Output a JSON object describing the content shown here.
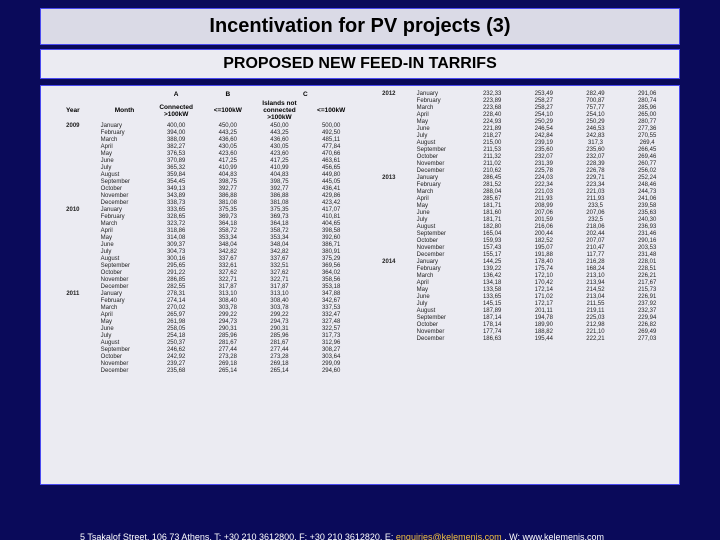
{
  "title": "Incentivation for PV projects (3)",
  "subtitle": "PROPOSED NEW FEED-IN TARRIFS",
  "left_headers": {
    "col1": "Year",
    "col2": "Month",
    "colA": "A",
    "colB": "B",
    "colC": "C",
    "subA": "Connected >100kW",
    "subB": "<=100kW",
    "subC1": "Islands not connected >100kW",
    "subC2": "<=100kW"
  },
  "footer": {
    "prefix": "5 Tsakalof Street, 106 73 Athens, T: +30 210 3612800, F: +30 210 3612820, E: ",
    "email": "enquiries@kelemenis.com",
    "suffix": ", W: www.kelemenis.com"
  },
  "months": [
    "January",
    "February",
    "March",
    "April",
    "May",
    "June",
    "July",
    "August",
    "September",
    "October",
    "November",
    "December"
  ],
  "left": {
    "2009": [
      [
        "400,00",
        "450,00",
        "450,00",
        "500,00"
      ],
      [
        "394,00",
        "443,25",
        "443,25",
        "492,50"
      ],
      [
        "388,09",
        "436,60",
        "436,60",
        "485,11"
      ],
      [
        "382,27",
        "430,05",
        "430,05",
        "477,84"
      ],
      [
        "376,53",
        "423,60",
        "423,60",
        "470,66"
      ],
      [
        "370,89",
        "417,25",
        "417,25",
        "463,61"
      ],
      [
        "365,32",
        "410,99",
        "410,99",
        "456,65"
      ],
      [
        "359,84",
        "404,83",
        "404,83",
        "449,80"
      ],
      [
        "354,45",
        "398,75",
        "398,75",
        "445,05"
      ],
      [
        "349,13",
        "392,77",
        "392,77",
        "436,41"
      ],
      [
        "343,89",
        "386,88",
        "386,88",
        "429,86"
      ],
      [
        "338,73",
        "381,08",
        "381,08",
        "423,42"
      ]
    ],
    "2010": [
      [
        "333,65",
        "375,35",
        "375,35",
        "417,07"
      ],
      [
        "328,65",
        "369,73",
        "369,73",
        "410,81"
      ],
      [
        "323,72",
        "364,18",
        "364,18",
        "404,65"
      ],
      [
        "318,86",
        "358,72",
        "358,72",
        "398,58"
      ],
      [
        "314,08",
        "353,34",
        "353,34",
        "392,60"
      ],
      [
        "309,37",
        "348,04",
        "348,04",
        "386,71"
      ],
      [
        "304,73",
        "342,82",
        "342,82",
        "380,91"
      ],
      [
        "300,16",
        "337,67",
        "337,67",
        "375,29"
      ],
      [
        "295,65",
        "332,61",
        "332,51",
        "369,56"
      ],
      [
        "291,22",
        "327,62",
        "327,62",
        "364,02"
      ],
      [
        "286,85",
        "322,71",
        "322,71",
        "358,56"
      ],
      [
        "282,55",
        "317,87",
        "317,87",
        "353,18"
      ]
    ],
    "2011": [
      [
        "278,31",
        "313,10",
        "313,10",
        "347,88"
      ],
      [
        "274,14",
        "308,40",
        "308,40",
        "342,67"
      ],
      [
        "270,02",
        "303,78",
        "303,78",
        "337,53"
      ],
      [
        "265,97",
        "299,22",
        "299,22",
        "332,47"
      ],
      [
        "261,98",
        "294,73",
        "294,73",
        "327,48"
      ],
      [
        "258,05",
        "290,31",
        "290,31",
        "322,57"
      ],
      [
        "254,18",
        "285,96",
        "285,96",
        "317,73"
      ],
      [
        "250,37",
        "281,67",
        "281,67",
        "312,96"
      ],
      [
        "246,62",
        "277,44",
        "277,44",
        "308,27"
      ],
      [
        "242,92",
        "273,28",
        "273,28",
        "303,64"
      ],
      [
        "239,27",
        "269,18",
        "269,18",
        "299,09"
      ],
      [
        "235,68",
        "265,14",
        "265,14",
        "294,60"
      ]
    ]
  },
  "right": {
    "2012": [
      [
        "232,33",
        "253,49",
        "282,49",
        "291,06"
      ],
      [
        "223,89",
        "258,27",
        "700,87",
        "280,74"
      ],
      [
        "223,68",
        "258,27",
        "757,77",
        "285,96"
      ],
      [
        "228,40",
        "254,10",
        "254,10",
        "265,00"
      ],
      [
        "224,93",
        "250,29",
        "250,29",
        "280,77"
      ],
      [
        "221,89",
        "246,54",
        "246,53",
        "277,36"
      ],
      [
        "218,27",
        "242,84",
        "242,83",
        "270,55"
      ],
      [
        "215,00",
        "239,19",
        "317,3",
        "269,4"
      ],
      [
        "211,53",
        "235,60",
        "235,60",
        "266,45"
      ],
      [
        "211,32",
        "232,07",
        "232,07",
        "269,46"
      ],
      [
        "211,02",
        "231,39",
        "228,39",
        "260,77"
      ],
      [
        "210,62",
        "225,78",
        "226,78",
        "256,02"
      ]
    ],
    "2013": [
      [
        "286,45",
        "224,03",
        "229,71",
        "252,24"
      ],
      [
        "281,52",
        "222,34",
        "223,34",
        "248,46"
      ],
      [
        "288,04",
        "221,03",
        "221,03",
        "244,73"
      ],
      [
        "285,67",
        "211,93",
        "211,93",
        "241,06"
      ],
      [
        "181,71",
        "208,99",
        "233,5",
        "239,58"
      ],
      [
        "181,60",
        "207,06",
        "207,06",
        "235,63"
      ],
      [
        "181,71",
        "201,59",
        "232,5",
        "240,30"
      ],
      [
        "182,80",
        "216,06",
        "218,06",
        "236,93"
      ],
      [
        "165,04",
        "200,44",
        "202,44",
        "231,46"
      ],
      [
        "159,93",
        "182,52",
        "207,07",
        "290,16"
      ],
      [
        "157,43",
        "195,07",
        "210,47",
        "203,53"
      ],
      [
        "155,17",
        "191,88",
        "117,77",
        "231,48"
      ]
    ],
    "2014": [
      [
        "144,25",
        "178,40",
        "216,28",
        "228,01"
      ],
      [
        "139,22",
        "175,74",
        "168,24",
        "228,51"
      ],
      [
        "136,42",
        "172,10",
        "213,10",
        "226,21"
      ],
      [
        "134,18",
        "170,42",
        "213,94",
        "217,67"
      ],
      [
        "133,58",
        "172,14",
        "214,52",
        "215,73"
      ],
      [
        "133,65",
        "171,02",
        "213,04",
        "226,91"
      ],
      [
        "145,15",
        "172,17",
        "211,55",
        "237,92"
      ],
      [
        "187,89",
        "201,11",
        "219,11",
        "232,37"
      ],
      [
        "187,14",
        "194,78",
        "225,03",
        "229,94"
      ],
      [
        "178,14",
        "189,90",
        "212,98",
        "226,82"
      ],
      [
        "177,74",
        "188,82",
        "221,10",
        "269,49"
      ],
      [
        "186,63",
        "195,44",
        "222,21",
        "277,03"
      ]
    ]
  }
}
